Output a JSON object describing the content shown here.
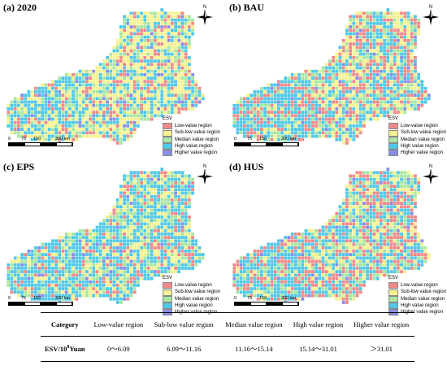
{
  "colors": {
    "low": "#f08a8a",
    "sub_low": "#f5f28f",
    "median": "#a8e6a3",
    "high": "#50c8e8",
    "higher": "#8a8de8",
    "grid_line": "#ffffff"
  },
  "legend": {
    "title": "ESV",
    "items": [
      {
        "key": "low",
        "label": "Low-value region"
      },
      {
        "key": "sub_low",
        "label": "Sub-low value region"
      },
      {
        "key": "median",
        "label": "Median value region"
      },
      {
        "key": "high",
        "label": "High value region"
      },
      {
        "key": "higher",
        "label": "Higher value region"
      }
    ]
  },
  "scale": {
    "labels": [
      "0",
      "75",
      "150",
      "300 km"
    ]
  },
  "north_label": "N",
  "panels": [
    {
      "title": "(a) 2020",
      "dominant": {
        "low": 0.12,
        "sub_low": 0.38,
        "median": 0.2,
        "high": 0.26,
        "higher": 0.04
      }
    },
    {
      "title": "(b) BAU",
      "dominant": {
        "low": 0.24,
        "sub_low": 0.22,
        "median": 0.18,
        "high": 0.32,
        "higher": 0.04
      }
    },
    {
      "title": "(c) EPS",
      "dominant": {
        "low": 0.14,
        "sub_low": 0.24,
        "median": 0.2,
        "high": 0.38,
        "higher": 0.04
      }
    },
    {
      "title": "(d) HUS",
      "dominant": {
        "low": 0.26,
        "sub_low": 0.2,
        "median": 0.18,
        "high": 0.32,
        "higher": 0.04
      }
    }
  ],
  "table": {
    "header": [
      "Category",
      "Low-value region",
      "Sub-low value region",
      "Median value region",
      "High value region",
      "Higher value region"
    ],
    "row_label_main": "ESV/10",
    "row_label_sup": "8",
    "row_label_unit": "Yuan",
    "row_values": [
      "0～6.09",
      "6.09～11.16",
      "11.16～15.14",
      "15.14～31.01",
      "＞31.01"
    ]
  }
}
